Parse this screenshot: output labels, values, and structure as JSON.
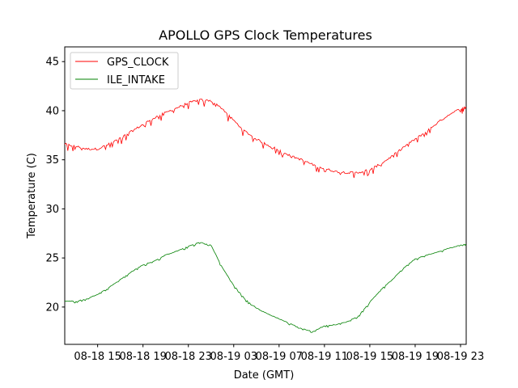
{
  "chart_data": {
    "type": "line",
    "title": "APOLLO GPS Clock Temperatures",
    "xlabel": "Date (GMT)",
    "ylabel": "Temperature (C)",
    "xlim": [
      12.1,
      47.5
    ],
    "ylim": [
      16.2,
      46.5
    ],
    "grid": false,
    "legend_position": "top-left",
    "x_units": "hours since 08-18 00:00 GMT",
    "xticks": [
      {
        "value": 15,
        "label": "08-18 15"
      },
      {
        "value": 19,
        "label": "08-18 19"
      },
      {
        "value": 23,
        "label": "08-18 23"
      },
      {
        "value": 27,
        "label": "08-19 03"
      },
      {
        "value": 31,
        "label": "08-19 07"
      },
      {
        "value": 35,
        "label": "08-19 11"
      },
      {
        "value": 39,
        "label": "08-19 15"
      },
      {
        "value": 43,
        "label": "08-19 19"
      },
      {
        "value": 47,
        "label": "08-19 23"
      }
    ],
    "yticks": [
      {
        "value": 20,
        "label": "20"
      },
      {
        "value": 25,
        "label": "25"
      },
      {
        "value": 30,
        "label": "30"
      },
      {
        "value": 35,
        "label": "35"
      },
      {
        "value": 40,
        "label": "40"
      },
      {
        "value": 45,
        "label": "45"
      }
    ],
    "series": [
      {
        "name": "GPS_CLOCK",
        "color": "#ff0000",
        "x": [
          12.1,
          13.0,
          14.0,
          15.0,
          16.0,
          17.0,
          18.0,
          19.0,
          20.0,
          21.0,
          22.0,
          23.0,
          24.0,
          25.0,
          26.0,
          27.0,
          28.0,
          29.0,
          30.0,
          31.0,
          32.0,
          33.0,
          34.0,
          35.0,
          36.0,
          37.0,
          38.0,
          39.0,
          40.0,
          41.0,
          42.0,
          43.0,
          44.0,
          45.0,
          46.0,
          47.0,
          47.5
        ],
        "y": [
          36.6,
          36.4,
          36.1,
          36.1,
          36.6,
          37.2,
          37.9,
          38.6,
          39.3,
          39.8,
          40.3,
          40.8,
          41.1,
          41.0,
          40.2,
          39.0,
          37.9,
          37.1,
          36.5,
          36.0,
          35.4,
          35.0,
          34.5,
          34.1,
          33.8,
          33.7,
          33.7,
          34.0,
          34.6,
          35.4,
          36.3,
          37.1,
          37.9,
          38.8,
          39.6,
          40.2,
          40.4
        ],
        "noise_amplitude": 0.7
      },
      {
        "name": "ILE_INTAKE",
        "color": "#008000",
        "x": [
          12.1,
          13.0,
          14.0,
          15.0,
          16.0,
          17.0,
          18.0,
          19.0,
          20.0,
          21.0,
          22.0,
          23.0,
          24.0,
          25.0,
          26.0,
          27.0,
          28.0,
          29.0,
          30.0,
          31.0,
          32.0,
          33.0,
          34.0,
          35.0,
          36.0,
          37.0,
          38.0,
          39.0,
          40.0,
          41.0,
          42.0,
          43.0,
          44.0,
          45.0,
          46.0,
          47.0,
          47.5
        ],
        "y": [
          20.6,
          20.6,
          20.8,
          21.3,
          22.0,
          22.8,
          23.6,
          24.3,
          24.7,
          25.3,
          25.7,
          26.2,
          26.6,
          26.3,
          24.0,
          22.2,
          20.8,
          19.9,
          19.3,
          18.8,
          18.3,
          17.8,
          17.5,
          18.1,
          18.2,
          18.5,
          19.1,
          20.5,
          21.8,
          22.8,
          24.0,
          24.9,
          25.3,
          25.6,
          26.0,
          26.3,
          26.4
        ],
        "noise_amplitude": 0.2
      }
    ]
  }
}
